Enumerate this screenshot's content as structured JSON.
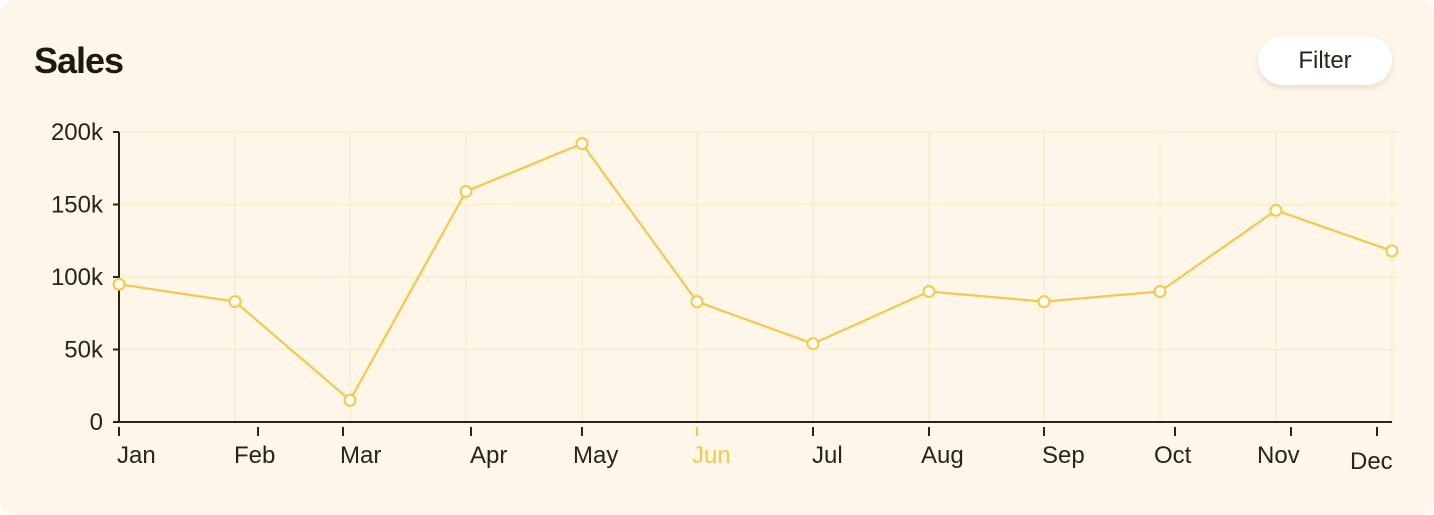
{
  "header": {
    "title": "Sales",
    "filter_label": "Filter"
  },
  "colors": {
    "background": "#fef7e9",
    "line": "#f5c947",
    "active_tick": "#f5c947",
    "axis": "#2a2418",
    "grid": "#fbecc2"
  },
  "chart_data": {
    "type": "line",
    "title": "Sales",
    "xlabel": "",
    "ylabel": "",
    "categories": [
      "Jan",
      "Feb",
      "Mar",
      "Apr",
      "May",
      "Jun",
      "Jul",
      "Aug",
      "Sep",
      "Oct",
      "Nov",
      "Dec"
    ],
    "highlighted_category": "Jun",
    "y_ticks": [
      "0",
      "50k",
      "100k",
      "150k",
      "200k"
    ],
    "ylim": [
      0,
      200000
    ],
    "grid": true,
    "series": [
      {
        "values": [
          95000,
          83000,
          15000,
          159000,
          192000,
          83000,
          54000,
          90000,
          83000,
          90000,
          146000,
          118000
        ]
      }
    ]
  }
}
